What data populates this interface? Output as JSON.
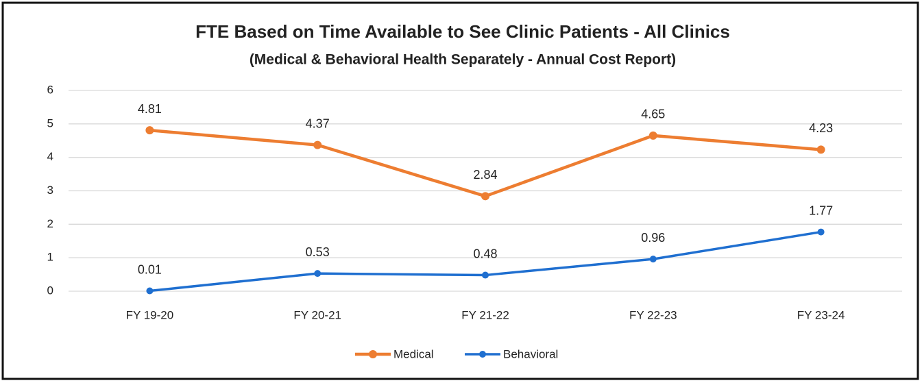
{
  "chart_data": {
    "type": "line",
    "title": "FTE Based on Time Available to See Clinic Patients - All Clinics",
    "subtitle": "(Medical & Behavioral Health Separately - Annual Cost Report)",
    "categories": [
      "FY 19-20",
      "FY 20-21",
      "FY 21-22",
      "FY 22-23",
      "FY 23-24"
    ],
    "series": [
      {
        "name": "Medical",
        "color": "#ed7d31",
        "values": [
          4.81,
          4.37,
          2.84,
          4.65,
          4.23
        ]
      },
      {
        "name": "Behavioral",
        "color": "#1f6fd0",
        "values": [
          0.01,
          0.53,
          0.48,
          0.96,
          1.77
        ]
      }
    ],
    "ylim": [
      0,
      6
    ],
    "yticks": [
      0,
      1,
      2,
      3,
      4,
      5,
      6
    ],
    "grid": true,
    "legend": "bottom"
  }
}
